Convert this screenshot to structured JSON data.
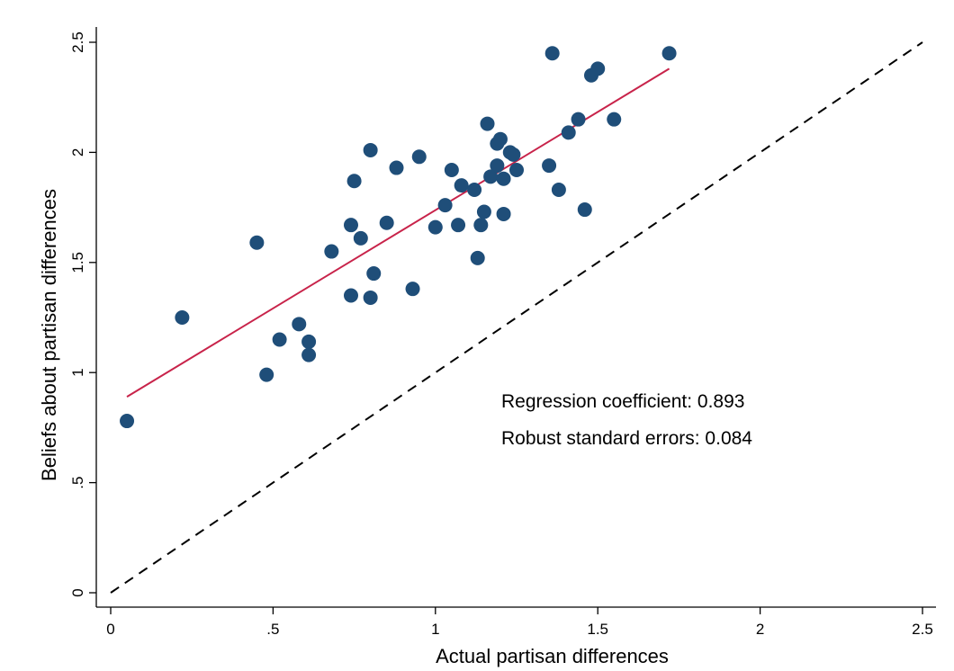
{
  "chart_data": {
    "type": "scatter",
    "xlabel": "Actual partisan differences",
    "ylabel": "Beliefs about partisan differences",
    "xlim": [
      0,
      2.5
    ],
    "ylim": [
      0,
      2.5
    ],
    "x_ticks": [
      0,
      0.5,
      1,
      1.5,
      2,
      2.5
    ],
    "x_tick_labels": [
      "0",
      ".5",
      "1",
      "1.5",
      "2",
      "2.5"
    ],
    "y_ticks": [
      0,
      0.5,
      1,
      1.5,
      2,
      2.5
    ],
    "y_tick_labels": [
      "0",
      ".5",
      "1",
      "1.5",
      "2",
      "2.5"
    ],
    "grid": false,
    "points": [
      [
        0.05,
        0.78
      ],
      [
        0.22,
        1.25
      ],
      [
        0.45,
        1.59
      ],
      [
        0.48,
        0.99
      ],
      [
        0.52,
        1.15
      ],
      [
        0.58,
        1.22
      ],
      [
        0.61,
        1.14
      ],
      [
        0.61,
        1.08
      ],
      [
        0.68,
        1.55
      ],
      [
        0.74,
        1.35
      ],
      [
        0.74,
        1.67
      ],
      [
        0.75,
        1.87
      ],
      [
        0.77,
        1.61
      ],
      [
        0.8,
        1.34
      ],
      [
        0.8,
        2.01
      ],
      [
        0.81,
        1.45
      ],
      [
        0.85,
        1.68
      ],
      [
        0.88,
        1.93
      ],
      [
        0.93,
        1.38
      ],
      [
        0.95,
        1.98
      ],
      [
        1.0,
        1.66
      ],
      [
        1.03,
        1.76
      ],
      [
        1.05,
        1.92
      ],
      [
        1.07,
        1.67
      ],
      [
        1.08,
        1.85
      ],
      [
        1.12,
        1.83
      ],
      [
        1.13,
        1.52
      ],
      [
        1.14,
        1.67
      ],
      [
        1.15,
        1.73
      ],
      [
        1.16,
        2.13
      ],
      [
        1.17,
        1.89
      ],
      [
        1.19,
        1.94
      ],
      [
        1.19,
        2.04
      ],
      [
        1.2,
        2.06
      ],
      [
        1.21,
        1.88
      ],
      [
        1.21,
        1.72
      ],
      [
        1.23,
        2.0
      ],
      [
        1.24,
        1.99
      ],
      [
        1.25,
        1.92
      ],
      [
        1.35,
        1.94
      ],
      [
        1.36,
        2.45
      ],
      [
        1.38,
        1.83
      ],
      [
        1.41,
        2.09
      ],
      [
        1.44,
        2.15
      ],
      [
        1.46,
        1.74
      ],
      [
        1.48,
        2.35
      ],
      [
        1.5,
        2.38
      ],
      [
        1.55,
        2.15
      ],
      [
        1.72,
        2.45
      ]
    ],
    "fit_line": {
      "x": [
        0.05,
        1.72
      ],
      "y": [
        0.89,
        2.38
      ]
    },
    "reference_line": {
      "x": [
        0,
        2.5
      ],
      "y": [
        0,
        2.5
      ]
    },
    "annotations": [
      "Regression coefficient:  0.893",
      "Robust standard errors: 0.084"
    ]
  }
}
